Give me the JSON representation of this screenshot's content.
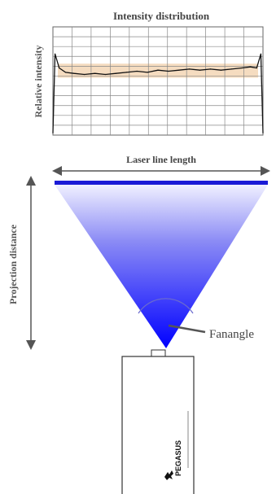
{
  "chart": {
    "title": "Intensity distribution",
    "ylabel": "Relative intensity"
  },
  "laser": {
    "length_label": "Laser line length",
    "distance_label": "Projection distance",
    "fan_label": "Fanangle",
    "brand": "PEGASUS"
  },
  "colors": {
    "beam_top": "#1a1ae6",
    "beam_bottom": "#0000ff",
    "laser_line": "#1a1ad6",
    "profile_band": "#f5dcc0",
    "arrow": "#555555",
    "grid": "#888888"
  },
  "chart_data": {
    "type": "line",
    "title": "Intensity distribution",
    "ylabel": "Relative intensity",
    "xlabel": "",
    "grid": true,
    "x": [
      0,
      1,
      3,
      6,
      10,
      15,
      20,
      25,
      30,
      35,
      40,
      45,
      50,
      55,
      60,
      65,
      70,
      75,
      80,
      85,
      90,
      94,
      97,
      99,
      100
    ],
    "y": [
      0.02,
      0.75,
      0.62,
      0.58,
      0.57,
      0.56,
      0.57,
      0.56,
      0.57,
      0.58,
      0.59,
      0.58,
      0.6,
      0.59,
      0.6,
      0.61,
      0.6,
      0.61,
      0.6,
      0.61,
      0.62,
      0.63,
      0.62,
      0.75,
      0.02
    ],
    "band_low": 0.53,
    "band_high": 0.66,
    "ylim": [
      0,
      1
    ],
    "xlim": [
      0,
      100
    ]
  }
}
